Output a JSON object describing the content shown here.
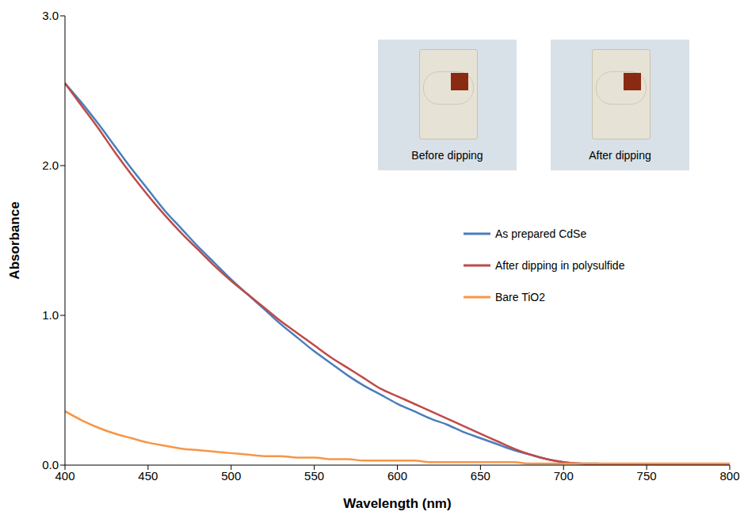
{
  "chart_data": {
    "type": "line",
    "x_label": "Wavelength (nm)",
    "y_label": "Absorbance",
    "x": [
      400,
      410,
      420,
      430,
      440,
      450,
      460,
      470,
      480,
      490,
      500,
      510,
      520,
      530,
      540,
      550,
      560,
      570,
      580,
      590,
      600,
      610,
      620,
      630,
      640,
      650,
      660,
      670,
      680,
      690,
      700,
      710,
      720,
      730,
      740,
      750,
      760,
      770,
      780,
      790,
      800
    ],
    "series": [
      {
        "name": "As prepared CdSe",
        "color": "#4a7ebb",
        "line_style": "solid",
        "marker": "none",
        "values": [
          2.55,
          2.42,
          2.28,
          2.13,
          1.98,
          1.84,
          1.7,
          1.58,
          1.46,
          1.35,
          1.24,
          1.14,
          1.04,
          0.94,
          0.85,
          0.76,
          0.68,
          0.6,
          0.53,
          0.47,
          0.41,
          0.36,
          0.31,
          0.27,
          0.22,
          0.18,
          0.14,
          0.1,
          0.07,
          0.04,
          0.02,
          0.01,
          0.01,
          0.0,
          0.0,
          0.0,
          0.0,
          0.0,
          0.0,
          0.0,
          0.0
        ]
      },
      {
        "name": "After dipping in polysulfide",
        "color": "#be4b48",
        "line_style": "solid",
        "marker": "none",
        "values": [
          2.55,
          2.4,
          2.25,
          2.09,
          1.94,
          1.8,
          1.67,
          1.55,
          1.44,
          1.33,
          1.23,
          1.14,
          1.05,
          0.96,
          0.88,
          0.8,
          0.72,
          0.65,
          0.58,
          0.51,
          0.46,
          0.41,
          0.36,
          0.31,
          0.26,
          0.21,
          0.16,
          0.11,
          0.07,
          0.04,
          0.02,
          0.01,
          0.0,
          0.0,
          0.0,
          0.0,
          0.0,
          0.0,
          0.0,
          0.0,
          0.0
        ]
      },
      {
        "name": "Bare TiO2",
        "color": "#f79646",
        "line_style": "solid",
        "marker": "none",
        "values": [
          0.36,
          0.3,
          0.25,
          0.21,
          0.18,
          0.15,
          0.13,
          0.11,
          0.1,
          0.09,
          0.08,
          0.07,
          0.06,
          0.06,
          0.05,
          0.05,
          0.04,
          0.04,
          0.03,
          0.03,
          0.03,
          0.03,
          0.02,
          0.02,
          0.02,
          0.02,
          0.02,
          0.02,
          0.01,
          0.01,
          0.01,
          0.01,
          0.01,
          0.01,
          0.01,
          0.01,
          0.01,
          0.01,
          0.01,
          0.01,
          0.01
        ]
      }
    ],
    "xlim": [
      400,
      800
    ],
    "xticks": [
      400,
      450,
      500,
      550,
      600,
      650,
      700,
      750,
      800
    ],
    "ylim": [
      0,
      3
    ],
    "yticks": [
      {
        "value": 0,
        "label": "0.0"
      },
      {
        "value": 1,
        "label": "1.0"
      },
      {
        "value": 2,
        "label": "2.0"
      },
      {
        "value": 3,
        "label": "3.0"
      }
    ],
    "grid": false,
    "legend": "right",
    "annotations": [
      "Before dipping",
      "After dipping"
    ]
  }
}
